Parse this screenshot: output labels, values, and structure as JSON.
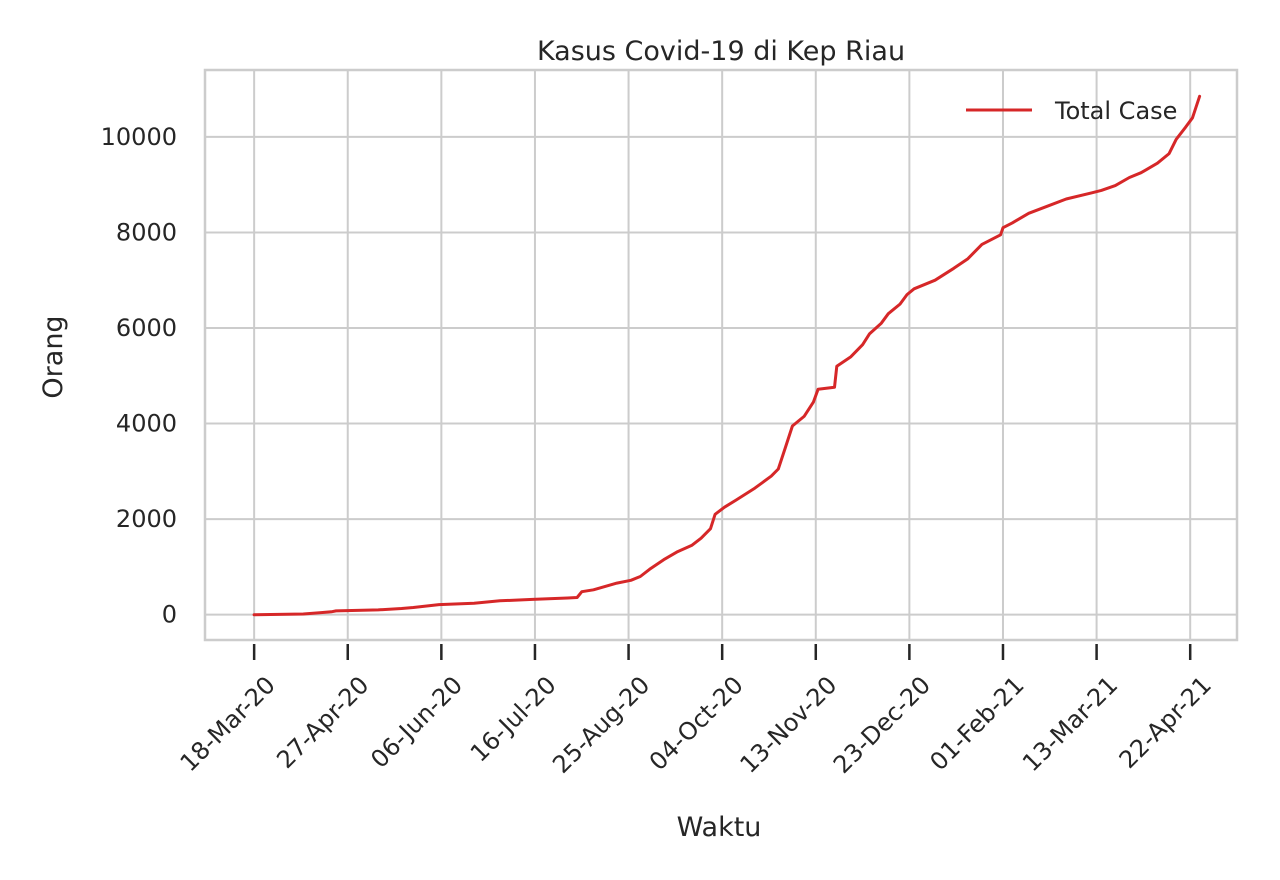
{
  "chart_data": {
    "type": "line",
    "title": "Kasus Covid-19 di Kep Riau",
    "xlabel": "Waktu",
    "ylabel": "Orang",
    "x_type": "date",
    "x_tick_labels": [
      "18-Mar-20",
      "27-Apr-20",
      "06-Jun-20",
      "16-Jul-20",
      "25-Aug-20",
      "04-Oct-20",
      "13-Nov-20",
      "23-Dec-20",
      "01-Feb-21",
      "13-Mar-21",
      "22-Apr-21"
    ],
    "x_tick_dates": [
      "2020-03-18",
      "2020-04-27",
      "2020-06-06",
      "2020-07-16",
      "2020-08-25",
      "2020-10-04",
      "2020-11-13",
      "2020-12-23",
      "2021-02-01",
      "2021-03-13",
      "2021-04-22"
    ],
    "xlim": [
      "2020-02-26",
      "2021-05-12"
    ],
    "y_ticks": [
      0,
      2000,
      4000,
      6000,
      8000,
      10000
    ],
    "y_tick_labels": [
      "0",
      "2000",
      "4000",
      "6000",
      "8000",
      "10000"
    ],
    "ylim": [
      -530,
      11400
    ],
    "grid": true,
    "legend_position": "top-right",
    "series": [
      {
        "name": "Total Case",
        "color": "#d62728",
        "points": [
          [
            "2020-03-18",
            0
          ],
          [
            "2020-04-08",
            15
          ],
          [
            "2020-04-15",
            40
          ],
          [
            "2020-04-20",
            60
          ],
          [
            "2020-04-22",
            80
          ],
          [
            "2020-05-10",
            100
          ],
          [
            "2020-05-20",
            130
          ],
          [
            "2020-05-25",
            150
          ],
          [
            "2020-06-05",
            210
          ],
          [
            "2020-06-20",
            240
          ],
          [
            "2020-07-01",
            290
          ],
          [
            "2020-07-15",
            320
          ],
          [
            "2020-07-30",
            350
          ],
          [
            "2020-08-03",
            360
          ],
          [
            "2020-08-05",
            480
          ],
          [
            "2020-08-10",
            520
          ],
          [
            "2020-08-20",
            660
          ],
          [
            "2020-08-26",
            720
          ],
          [
            "2020-08-30",
            800
          ],
          [
            "2020-09-03",
            950
          ],
          [
            "2020-09-09",
            1150
          ],
          [
            "2020-09-15",
            1320
          ],
          [
            "2020-09-21",
            1450
          ],
          [
            "2020-09-25",
            1600
          ],
          [
            "2020-09-29",
            1800
          ],
          [
            "2020-10-01",
            2100
          ],
          [
            "2020-10-05",
            2250
          ],
          [
            "2020-10-10",
            2400
          ],
          [
            "2020-10-18",
            2650
          ],
          [
            "2020-10-25",
            2900
          ],
          [
            "2020-10-28",
            3050
          ],
          [
            "2020-10-31",
            3500
          ],
          [
            "2020-11-03",
            3950
          ],
          [
            "2020-11-08",
            4150
          ],
          [
            "2020-11-12",
            4450
          ],
          [
            "2020-11-14",
            4720
          ],
          [
            "2020-11-21",
            4760
          ],
          [
            "2020-11-22",
            5200
          ],
          [
            "2020-11-28",
            5400
          ],
          [
            "2020-12-03",
            5650
          ],
          [
            "2020-12-06",
            5880
          ],
          [
            "2020-12-11",
            6100
          ],
          [
            "2020-12-14",
            6300
          ],
          [
            "2020-12-19",
            6500
          ],
          [
            "2020-12-22",
            6700
          ],
          [
            "2020-12-25",
            6820
          ],
          [
            "2021-01-03",
            7000
          ],
          [
            "2021-01-11",
            7250
          ],
          [
            "2021-01-17",
            7450
          ],
          [
            "2021-01-23",
            7750
          ],
          [
            "2021-01-31",
            7950
          ],
          [
            "2021-02-01",
            8100
          ],
          [
            "2021-02-05",
            8200
          ],
          [
            "2021-02-12",
            8400
          ],
          [
            "2021-02-20",
            8550
          ],
          [
            "2021-02-28",
            8700
          ],
          [
            "2021-03-11",
            8830
          ],
          [
            "2021-03-15",
            8880
          ],
          [
            "2021-03-21",
            8980
          ],
          [
            "2021-03-27",
            9150
          ],
          [
            "2021-04-01",
            9250
          ],
          [
            "2021-04-08",
            9450
          ],
          [
            "2021-04-13",
            9650
          ],
          [
            "2021-04-16",
            9950
          ],
          [
            "2021-04-20",
            10200
          ],
          [
            "2021-04-23",
            10400
          ],
          [
            "2021-04-26",
            10850
          ]
        ]
      }
    ]
  }
}
